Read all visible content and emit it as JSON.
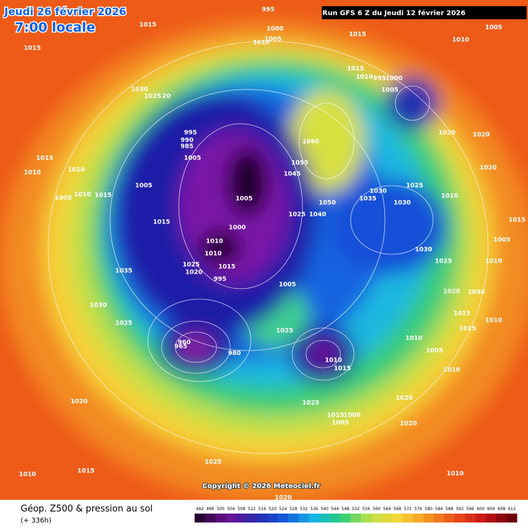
{
  "header": {
    "date": "Jeudi 26 février 2026",
    "time": "7:00 locale",
    "run": "Run GFS 6 Z du Jeudi 12 février 2026"
  },
  "map": {
    "pressure_labels": [
      995,
      1000,
      1005,
      1010,
      1015,
      1015,
      1015,
      1010,
      1005,
      1015,
      1010,
      995,
      1000,
      1005,
      1030,
      1025,
      20,
      995,
      990,
      985,
      1005,
      1060,
      1055,
      1045,
      1020,
      1020,
      1020,
      1015,
      1010,
      1010,
      1005,
      1005,
      1005,
      1010,
      1015,
      1030,
      1035,
      1025,
      1030,
      1050,
      1040,
      1025,
      1010,
      1015,
      1000,
      1010,
      1010,
      1025,
      1020,
      1015,
      1035,
      995,
      1005,
      1030,
      1025,
      1030,
      1025,
      1020,
      1030,
      1015,
      1015,
      1025,
      960,
      965,
      980,
      1010,
      1015,
      1010,
      1005,
      1010,
      1025,
      1020,
      1020,
      1020,
      1015,
      1000,
      1005,
      1025,
      1015,
      1010,
      1010,
      1020,
      1005,
      1010,
      1010,
      1015
    ],
    "copyright": "Copyright © 2026 Meteociel.fr"
  },
  "legend": {
    "title": "Géop. Z500 & pression au sol",
    "subtitle": "(+ 336h)",
    "values": [
      492,
      496,
      500,
      504,
      508,
      512,
      516,
      520,
      524,
      528,
      532,
      536,
      540,
      544,
      548,
      552,
      556,
      560,
      564,
      568,
      572,
      576,
      580,
      584,
      588,
      592,
      596,
      600,
      604,
      608,
      612
    ]
  }
}
